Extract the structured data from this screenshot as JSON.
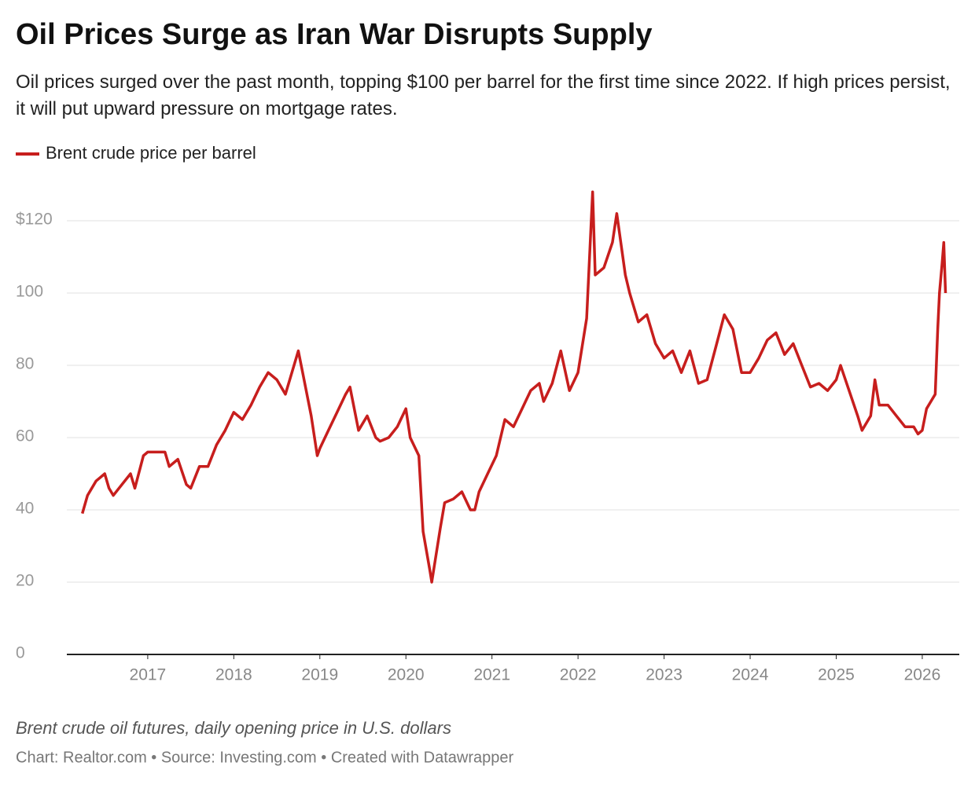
{
  "chart_data": {
    "type": "line",
    "title": "Oil Prices Surge as Iran War Disrupts Supply",
    "subtitle": "Oil prices surged over the past month, topping $100 per barrel for the first time since 2022. If high prices persist, it will put upward pressure on mortgage rates.",
    "note": "Brent crude oil futures, daily opening price in U.S. dollars",
    "source": "Chart: Realtor.com • Source: Investing.com • Created with Datawrapper",
    "x": [
      2016.24,
      2016.3,
      2016.4,
      2016.5,
      2016.55,
      2016.6,
      2016.7,
      2016.8,
      2016.85,
      2016.95,
      2017.0,
      2017.1,
      2017.2,
      2017.25,
      2017.35,
      2017.45,
      2017.5,
      2017.6,
      2017.7,
      2017.8,
      2017.9,
      2018.0,
      2018.1,
      2018.2,
      2018.3,
      2018.4,
      2018.5,
      2018.6,
      2018.65,
      2018.75,
      2018.8,
      2018.9,
      2018.97,
      2019.0,
      2019.1,
      2019.2,
      2019.3,
      2019.35,
      2019.45,
      2019.55,
      2019.65,
      2019.7,
      2019.8,
      2019.9,
      2020.0,
      2020.05,
      2020.15,
      2020.2,
      2020.28,
      2020.3,
      2020.4,
      2020.45,
      2020.55,
      2020.65,
      2020.75,
      2020.8,
      2020.85,
      2020.95,
      2021.05,
      2021.15,
      2021.25,
      2021.35,
      2021.45,
      2021.55,
      2021.6,
      2021.7,
      2021.8,
      2021.9,
      2022.0,
      2022.1,
      2022.17,
      2022.2,
      2022.3,
      2022.4,
      2022.45,
      2022.55,
      2022.6,
      2022.7,
      2022.8,
      2022.9,
      2023.0,
      2023.1,
      2023.2,
      2023.3,
      2023.4,
      2023.5,
      2023.6,
      2023.7,
      2023.8,
      2023.9,
      2024.0,
      2024.1,
      2024.2,
      2024.3,
      2024.4,
      2024.5,
      2024.6,
      2024.7,
      2024.8,
      2024.9,
      2025.0,
      2025.05,
      2025.15,
      2025.25,
      2025.3,
      2025.4,
      2025.45,
      2025.5,
      2025.6,
      2025.7,
      2025.8,
      2025.9,
      2025.95,
      2026.0,
      2026.05,
      2026.1,
      2026.15,
      2026.18,
      2026.2,
      2026.23,
      2026.25,
      2026.27
    ],
    "series": [
      {
        "name": "Brent crude price per barrel",
        "color": "#c71e1d",
        "values": [
          39,
          44,
          48,
          50,
          46,
          44,
          47,
          50,
          46,
          55,
          56,
          56,
          56,
          52,
          54,
          47,
          46,
          52,
          52,
          58,
          62,
          67,
          65,
          69,
          74,
          78,
          76,
          72,
          76,
          84,
          78,
          66,
          55,
          57,
          62,
          67,
          72,
          74,
          62,
          66,
          60,
          59,
          60,
          63,
          68,
          60,
          55,
          34,
          23,
          20,
          35,
          42,
          43,
          45,
          40,
          40,
          45,
          50,
          55,
          65,
          63,
          68,
          73,
          75,
          70,
          75,
          84,
          73,
          78,
          93,
          128,
          105,
          107,
          114,
          122,
          105,
          100,
          92,
          94,
          86,
          82,
          84,
          78,
          84,
          75,
          76,
          85,
          94,
          90,
          78,
          78,
          82,
          87,
          89,
          83,
          86,
          80,
          74,
          75,
          73,
          76,
          80,
          73,
          66,
          62,
          66,
          76,
          69,
          69,
          66,
          63,
          63,
          61,
          62,
          68,
          70,
          72,
          90,
          100,
          108,
          114,
          100
        ]
      }
    ],
    "xlim": [
      2016.06,
      2026.43
    ],
    "xticks": [
      2017,
      2018,
      2019,
      2020,
      2021,
      2022,
      2023,
      2024,
      2025,
      2026
    ],
    "ylim": [
      0,
      130
    ],
    "yticks": [
      0,
      20,
      40,
      60,
      80,
      100,
      {
        "value": 120,
        "label": "$120"
      }
    ],
    "grid": true
  }
}
